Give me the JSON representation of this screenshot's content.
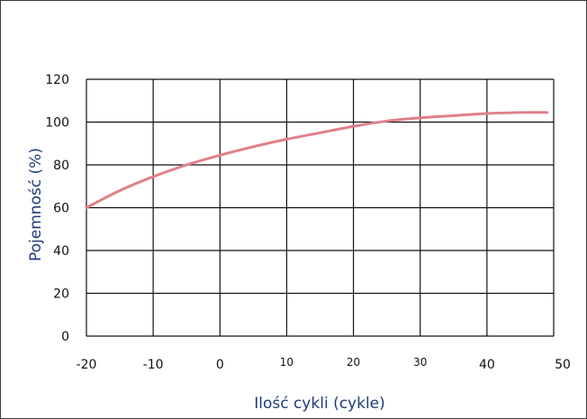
{
  "chart_data": {
    "type": "line",
    "title": "",
    "xlabel": "Ilość cykli (cykle)",
    "ylabel": "Pojemność (%)",
    "xlim": [
      -20,
      50
    ],
    "ylim": [
      0,
      120
    ],
    "grid": true,
    "x_ticks": [
      {
        "value": -20,
        "label": "-20"
      },
      {
        "value": -10,
        "label": "-10"
      },
      {
        "value": 0,
        "label": "0"
      },
      {
        "value": 10,
        "label": "10"
      },
      {
        "value": 20,
        "label": "20"
      },
      {
        "value": 30,
        "label": "30"
      },
      {
        "value": 40,
        "label": "40"
      },
      {
        "value": 50,
        "label": "50"
      }
    ],
    "y_ticks": [
      {
        "value": 0,
        "label": "0"
      },
      {
        "value": 20,
        "label": "20"
      },
      {
        "value": 40,
        "label": "40"
      },
      {
        "value": 60,
        "label": "60"
      },
      {
        "value": 80,
        "label": "80"
      },
      {
        "value": 100,
        "label": "100"
      },
      {
        "value": 120,
        "label": "120"
      }
    ],
    "series": [
      {
        "color": "#e0808a",
        "x": [
          -20,
          -15,
          -10,
          -5,
          0,
          5,
          10,
          15,
          20,
          25,
          30,
          35,
          40,
          45,
          49
        ],
        "y": [
          60,
          68,
          74.5,
          80,
          84.5,
          88.5,
          92,
          95,
          98,
          100.5,
          102,
          103,
          104,
          104.5,
          104.5
        ]
      }
    ],
    "colors": {
      "grid": "#111111",
      "axis_title": "#1e3a78",
      "tick_text": "#111111",
      "frame": "#3a3a3a"
    }
  }
}
